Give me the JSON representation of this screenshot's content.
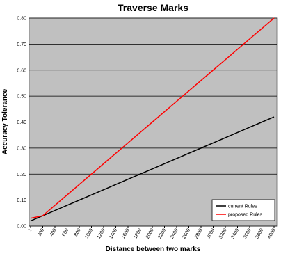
{
  "chart_data": {
    "type": "line",
    "title": "Traverse Marks",
    "x_label": "Distance between two marks",
    "y_label": "Accuracy Tolerance",
    "categories": [
      "1",
      "200",
      "400",
      "600",
      "800",
      "1000",
      "1200",
      "1400",
      "1600",
      "1800",
      "2000",
      "2200",
      "2400",
      "2600",
      "2800",
      "3000",
      "3200",
      "3400",
      "3600",
      "3800",
      "4000"
    ],
    "series": [
      {
        "name": "current Rules",
        "color": "#000000",
        "values": [
          0.02,
          0.04,
          0.06,
          0.08,
          0.1,
          0.12,
          0.14,
          0.16,
          0.18,
          0.2,
          0.22,
          0.24,
          0.26,
          0.28,
          0.3,
          0.32,
          0.34,
          0.36,
          0.38,
          0.4,
          0.42
        ]
      },
      {
        "name": "proposed Rules",
        "color": "#ff0000",
        "values": [
          0.03,
          0.04,
          0.08,
          0.12,
          0.16,
          0.2,
          0.24,
          0.28,
          0.32,
          0.36,
          0.4,
          0.44,
          0.48,
          0.52,
          0.56,
          0.6,
          0.64,
          0.68,
          0.72,
          0.76,
          0.8
        ]
      }
    ],
    "ylim": [
      0,
      0.8
    ],
    "yticks": [
      {
        "value": 0,
        "label": "0.00"
      },
      {
        "value": 0.1,
        "label": "0.10"
      },
      {
        "value": 0.2,
        "label": "0.20"
      },
      {
        "value": 0.3,
        "label": "0.30"
      },
      {
        "value": 0.4,
        "label": "0.40"
      },
      {
        "value": 0.5,
        "label": "0.50"
      },
      {
        "value": 0.6,
        "label": "0.60"
      },
      {
        "value": 0.7,
        "label": "0.70"
      },
      {
        "value": 0.8,
        "label": "0.80"
      }
    ],
    "grid": true,
    "legend": "lower right",
    "background": "#c0c0c0"
  }
}
